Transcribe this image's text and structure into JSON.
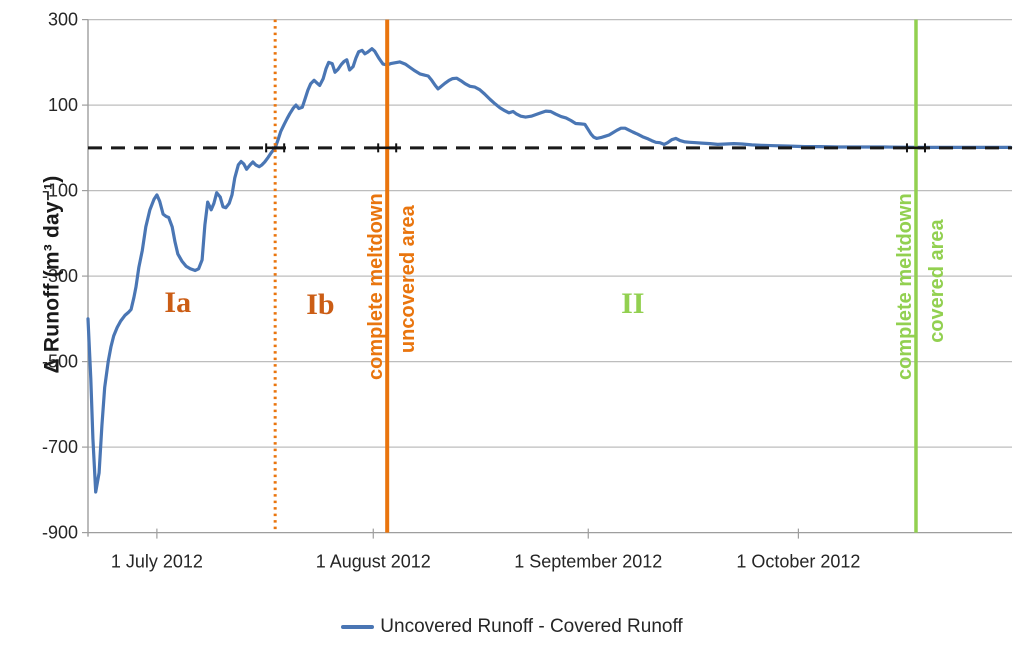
{
  "figure": {
    "background": "#ffffff"
  },
  "chart_data": {
    "type": "line",
    "title": "",
    "xlabel": "",
    "ylabel": "Δ Runoff (m³ day⁻¹)",
    "ylim": [
      -900,
      300
    ],
    "y_ticks": [
      300,
      100,
      -100,
      -300,
      -500,
      -700,
      -900
    ],
    "grid": "horizontal",
    "legend_position": "bottom-center",
    "x_axis_note": "days measured from 21 June 2012 (day 0); ticks mark month starts",
    "x_days_range": [
      0,
      132.8
    ],
    "x_ticks": [
      {
        "label": "1 July 2012",
        "day": 9.9
      },
      {
        "label": "1 August 2012",
        "day": 41.0
      },
      {
        "label": "1 September 2012",
        "day": 71.9
      },
      {
        "label": "1 October 2012",
        "day": 102.1
      }
    ],
    "zero_line": {
      "style": "dashed",
      "color": "#1a1a1a",
      "value": 0
    },
    "colors": {
      "series_blue": "#4A76B4",
      "orange": "#E9750E",
      "phase_label_orange": "#CB5D15",
      "green": "#92D050",
      "gridline": "#BDBDBD",
      "axis": "#9E9E9E",
      "text": "#262626"
    },
    "series": [
      {
        "name": "Uncovered Runoff - Covered Runoff",
        "color": "#4A76B4",
        "points": [
          [
            0,
            -400
          ],
          [
            0.4,
            -540
          ],
          [
            0.7,
            -680
          ],
          [
            1.1,
            -805
          ],
          [
            1.6,
            -760
          ],
          [
            2,
            -650
          ],
          [
            2.4,
            -560
          ],
          [
            2.9,
            -500
          ],
          [
            3.3,
            -465
          ],
          [
            3.7,
            -440
          ],
          [
            4.2,
            -420
          ],
          [
            4.7,
            -405
          ],
          [
            5.3,
            -392
          ],
          [
            5.8,
            -385
          ],
          [
            6.2,
            -378
          ],
          [
            6.6,
            -350
          ],
          [
            6.9,
            -325
          ],
          [
            7.3,
            -280
          ],
          [
            7.8,
            -240
          ],
          [
            8.3,
            -185
          ],
          [
            8.9,
            -145
          ],
          [
            9.5,
            -120
          ],
          [
            9.9,
            -110
          ],
          [
            10.3,
            -125
          ],
          [
            10.8,
            -155
          ],
          [
            11.2,
            -160
          ],
          [
            11.6,
            -163
          ],
          [
            12.1,
            -185
          ],
          [
            12.5,
            -220
          ],
          [
            12.9,
            -248
          ],
          [
            13.5,
            -265
          ],
          [
            14.1,
            -277
          ],
          [
            14.7,
            -283
          ],
          [
            15.4,
            -287
          ],
          [
            15.9,
            -283
          ],
          [
            16.4,
            -262
          ],
          [
            16.8,
            -180
          ],
          [
            17.2,
            -127
          ],
          [
            17.7,
            -145
          ],
          [
            18.1,
            -130
          ],
          [
            18.5,
            -105
          ],
          [
            19,
            -115
          ],
          [
            19.4,
            -138
          ],
          [
            19.8,
            -140
          ],
          [
            20.3,
            -130
          ],
          [
            20.7,
            -110
          ],
          [
            21.1,
            -70
          ],
          [
            21.6,
            -40
          ],
          [
            22,
            -32
          ],
          [
            22.4,
            -38
          ],
          [
            22.8,
            -50
          ],
          [
            23.3,
            -40
          ],
          [
            23.7,
            -33
          ],
          [
            24.1,
            -40
          ],
          [
            24.6,
            -44
          ],
          [
            25,
            -40
          ],
          [
            25.4,
            -33
          ],
          [
            25.9,
            -22
          ],
          [
            26.3,
            -12
          ],
          [
            26.9,
            0
          ],
          [
            27.3,
            18
          ],
          [
            27.7,
            38
          ],
          [
            28.2,
            55
          ],
          [
            28.6,
            68
          ],
          [
            29,
            80
          ],
          [
            29.5,
            93
          ],
          [
            29.9,
            100
          ],
          [
            30.3,
            92
          ],
          [
            30.8,
            95
          ],
          [
            31.2,
            115
          ],
          [
            31.6,
            135
          ],
          [
            32,
            150
          ],
          [
            32.5,
            158
          ],
          [
            32.9,
            152
          ],
          [
            33.3,
            146
          ],
          [
            33.8,
            162
          ],
          [
            34.2,
            185
          ],
          [
            34.6,
            200
          ],
          [
            35.1,
            197
          ],
          [
            35.5,
            177
          ],
          [
            35.9,
            183
          ],
          [
            36.4,
            195
          ],
          [
            36.8,
            202
          ],
          [
            37.2,
            206
          ],
          [
            37.6,
            182
          ],
          [
            38.1,
            190
          ],
          [
            38.5,
            210
          ],
          [
            38.9,
            225
          ],
          [
            39.4,
            228
          ],
          [
            39.8,
            220
          ],
          [
            40.2,
            224
          ],
          [
            40.8,
            232
          ],
          [
            41.2,
            226
          ],
          [
            41.8,
            210
          ],
          [
            42.4,
            196
          ],
          [
            43,
            194
          ],
          [
            43.5,
            197
          ],
          [
            44.1,
            199
          ],
          [
            44.8,
            201
          ],
          [
            45.6,
            196
          ],
          [
            46.3,
            188
          ],
          [
            47,
            180
          ],
          [
            47.7,
            173
          ],
          [
            48.4,
            170
          ],
          [
            48.9,
            168
          ],
          [
            49.4,
            158
          ],
          [
            49.9,
            146
          ],
          [
            50.3,
            138
          ],
          [
            50.7,
            143
          ],
          [
            51.3,
            151
          ],
          [
            51.9,
            158
          ],
          [
            52.4,
            162
          ],
          [
            53,
            163
          ],
          [
            53.6,
            157
          ],
          [
            54.2,
            150
          ],
          [
            54.9,
            144
          ],
          [
            55.6,
            142
          ],
          [
            56.3,
            136
          ],
          [
            57,
            126
          ],
          [
            57.8,
            113
          ],
          [
            58.5,
            103
          ],
          [
            59.2,
            94
          ],
          [
            59.9,
            87
          ],
          [
            60.5,
            82
          ],
          [
            61.1,
            85
          ],
          [
            61.6,
            79
          ],
          [
            62.2,
            74
          ],
          [
            62.9,
            72
          ],
          [
            63.7,
            74
          ],
          [
            64.4,
            78
          ],
          [
            65.1,
            82
          ],
          [
            65.8,
            86
          ],
          [
            66.5,
            85
          ],
          [
            67.2,
            79
          ],
          [
            68,
            73
          ],
          [
            68.7,
            70
          ],
          [
            69.4,
            64
          ],
          [
            70.1,
            57
          ],
          [
            70.8,
            56
          ],
          [
            71.4,
            55
          ],
          [
            71.8,
            45
          ],
          [
            72.3,
            32
          ],
          [
            72.7,
            25
          ],
          [
            73.1,
            22
          ],
          [
            73.7,
            24
          ],
          [
            74.3,
            27
          ],
          [
            74.9,
            30
          ],
          [
            75.4,
            35
          ],
          [
            76,
            41
          ],
          [
            76.6,
            46
          ],
          [
            77.2,
            46
          ],
          [
            77.7,
            42
          ],
          [
            78.3,
            37
          ],
          [
            79,
            32
          ],
          [
            79.7,
            26
          ],
          [
            80.5,
            21
          ],
          [
            81,
            17
          ],
          [
            81.6,
            13
          ],
          [
            82.2,
            12
          ],
          [
            82.8,
            8
          ],
          [
            83.3,
            12
          ],
          [
            83.9,
            19
          ],
          [
            84.5,
            22
          ],
          [
            85.1,
            17
          ],
          [
            85.8,
            14
          ],
          [
            86.5,
            13
          ],
          [
            87.4,
            12
          ],
          [
            88.2,
            11
          ],
          [
            89.4,
            10
          ],
          [
            90.5,
            8
          ],
          [
            91.7,
            9
          ],
          [
            92.8,
            10
          ],
          [
            94,
            9
          ],
          [
            95.4,
            7
          ],
          [
            96.8,
            6
          ],
          [
            98.7,
            5
          ],
          [
            100.9,
            4
          ],
          [
            103,
            3
          ],
          [
            105.2,
            3
          ],
          [
            108,
            2
          ],
          [
            110.9,
            2
          ],
          [
            114.5,
            2
          ],
          [
            119,
            1
          ],
          [
            123.9,
            1
          ],
          [
            128.2,
            1
          ],
          [
            132.6,
            1
          ]
        ]
      }
    ],
    "vlines": [
      {
        "name": "phase-boundary-dotted",
        "style": "dotted",
        "color": "#E9750E",
        "day": 26.9,
        "width": 3,
        "labels": []
      },
      {
        "name": "complete-meltdown-uncovered",
        "style": "solid",
        "color": "#E9750E",
        "day": 43.0,
        "width": 4,
        "labels": [
          {
            "text": "complete meltdown",
            "side": "left",
            "bottom_value": -543
          },
          {
            "text": "uncovered area",
            "side": "right",
            "bottom_value": -480
          }
        ]
      },
      {
        "name": "complete-meltdown-covered",
        "style": "solid",
        "color": "#92D050",
        "day": 119.0,
        "width": 3.5,
        "labels": [
          {
            "text": "complete meltdown",
            "side": "left",
            "bottom_value": -543
          },
          {
            "text": "covered area",
            "side": "right",
            "bottom_value": -456
          }
        ]
      }
    ],
    "crossing_markers_days": [
      26.9,
      43.0,
      119.0
    ],
    "phase_labels": [
      {
        "text": "Ia",
        "day": 12.9,
        "value": -358,
        "color": "#CB5D15"
      },
      {
        "text": "Ib",
        "day": 33.4,
        "value": -363,
        "color": "#CB5D15"
      },
      {
        "text": "II",
        "day": 78.3,
        "value": -360,
        "color": "#92D050"
      }
    ]
  }
}
